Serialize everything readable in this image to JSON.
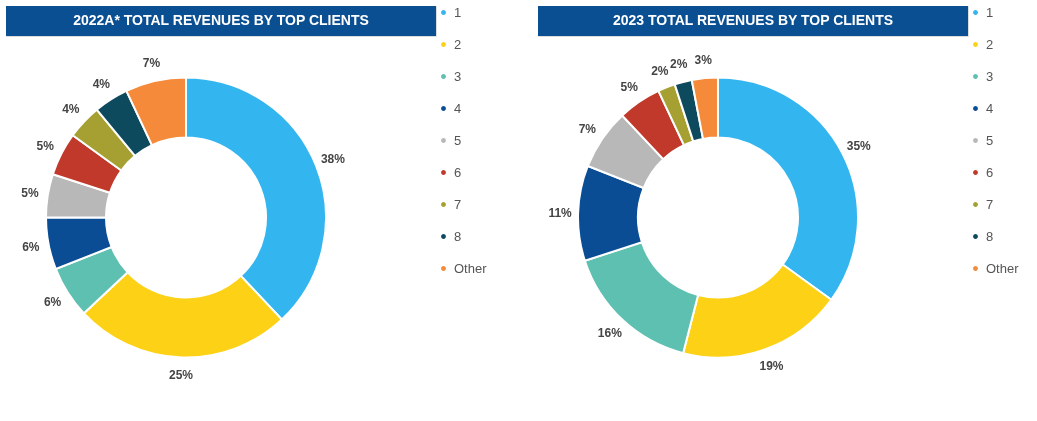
{
  "chart_data": [
    {
      "type": "donut",
      "title": "2022A* TOTAL REVENUES BY TOP CLIENTS",
      "categories": [
        "1",
        "2",
        "3",
        "4",
        "5",
        "6",
        "7",
        "8",
        "Other"
      ],
      "values": [
        38,
        25,
        6,
        6,
        5,
        5,
        4,
        4,
        7
      ],
      "value_labels": [
        "38%",
        "25%",
        "6%",
        "6%",
        "5%",
        "5%",
        "4%",
        "4%",
        "7%"
      ],
      "colors": [
        "#33b5ef",
        "#fcd116",
        "#5ec0b0",
        "#0a4d94",
        "#b8b8b8",
        "#c0392b",
        "#a6a032",
        "#0d4a5e",
        "#f58a3a"
      ],
      "legend": "right"
    },
    {
      "type": "donut",
      "title": "2023 TOTAL REVENUES BY TOP CLIENTS",
      "categories": [
        "1",
        "2",
        "3",
        "4",
        "5",
        "6",
        "7",
        "8",
        "Other"
      ],
      "values": [
        35,
        19,
        16,
        11,
        7,
        5,
        2,
        2,
        3
      ],
      "value_labels": [
        "35%",
        "19%",
        "16%",
        "11%",
        "7%",
        "5%",
        "2%",
        "2%",
        "3%"
      ],
      "colors": [
        "#33b5ef",
        "#fcd116",
        "#5ec0b0",
        "#0a4d94",
        "#b8b8b8",
        "#c0392b",
        "#a6a032",
        "#0d4a5e",
        "#f58a3a"
      ],
      "legend": "right"
    }
  ]
}
